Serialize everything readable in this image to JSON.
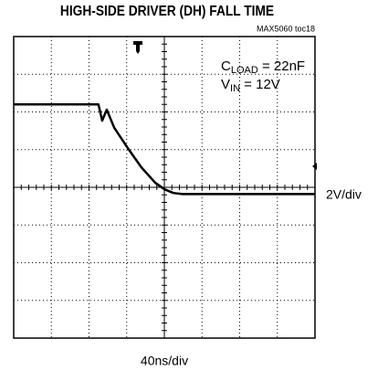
{
  "chart_data": {
    "type": "line",
    "title": "HIGH-SIDE DRIVER (DH) FALL TIME",
    "subtitle": "MAX5060 toc18",
    "annotations": [
      {
        "main": "C",
        "sub": "LOAD",
        "rest": " = 22nF"
      },
      {
        "main": "V",
        "sub": "IN",
        "rest": " = 12V"
      }
    ],
    "ylabel": "2V/div",
    "xlabel": "40ns/div",
    "x": [
      0,
      1,
      2,
      2.25,
      2.35,
      2.47,
      2.67,
      3.03,
      3.39,
      3.76,
      4.0,
      4.24,
      4.48,
      5,
      6,
      7,
      8
    ],
    "series": [
      {
        "name": null,
        "color": "#000000",
        "values": [
          6.2,
          6.2,
          6.2,
          6.2,
          5.77,
          6.06,
          5.58,
          5.04,
          4.53,
          4.12,
          3.95,
          3.85,
          3.82,
          3.82,
          3.82,
          3.82,
          3.82
        ]
      }
    ],
    "xlim": [
      0,
      8
    ],
    "ylim": [
      0,
      8
    ],
    "xticks": [
      0,
      1,
      2,
      3,
      4,
      5,
      6,
      7,
      8
    ],
    "yticks": [
      0,
      1,
      2,
      3,
      4,
      5,
      6,
      7,
      8
    ],
    "grid": true
  }
}
